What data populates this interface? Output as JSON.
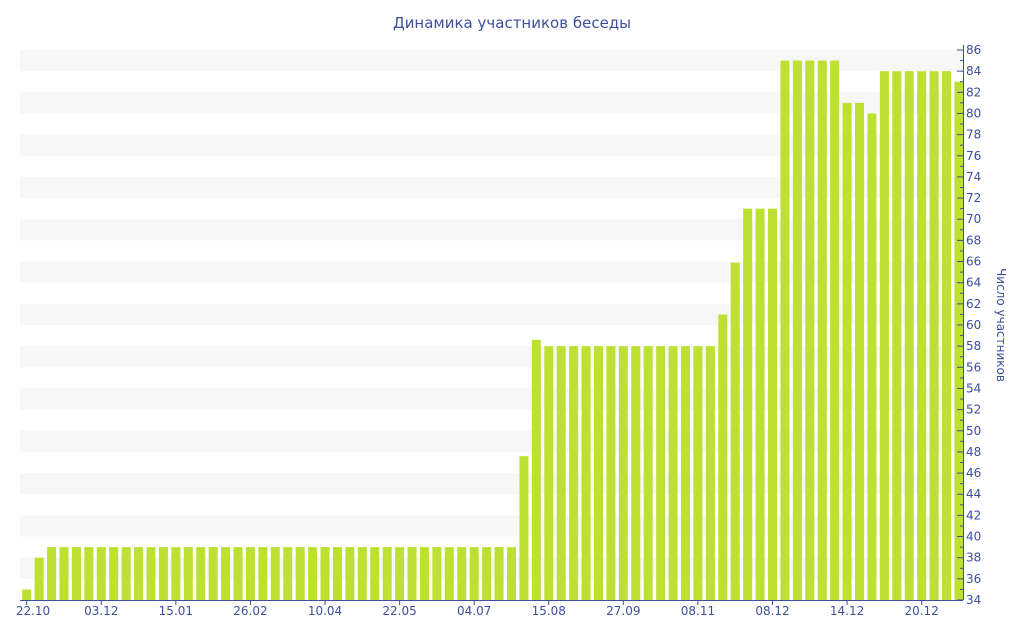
{
  "chart_data": {
    "type": "bar",
    "title": "Динамика участников беседы",
    "xlabel": "",
    "ylabel": "Число участников",
    "ylim": [
      34,
      86
    ],
    "ytick_step": 2,
    "y_axis_side": "right",
    "grid": "alternating horizontal bands",
    "x_tick_every": 6,
    "x_tick_labels": [
      "22.10",
      "03.12",
      "15.01",
      "26.02",
      "10.04",
      "22.05",
      "04.07",
      "15.08",
      "27.09",
      "08.11",
      "08.12",
      "14.12",
      "20.12"
    ],
    "values": [
      35,
      38,
      39,
      39,
      39,
      39,
      39,
      39,
      39,
      39,
      39,
      39,
      39,
      39,
      39,
      39,
      39,
      39,
      39,
      39,
      39,
      39,
      39,
      39,
      39,
      39,
      39,
      39,
      39,
      39,
      39,
      39,
      39,
      39,
      39,
      39,
      39,
      39,
      39,
      39,
      47.6,
      58.6,
      58,
      58,
      58,
      58,
      58,
      58,
      58,
      58,
      58,
      58,
      58,
      58,
      58,
      58,
      61,
      65.9,
      71,
      71,
      71,
      85,
      85,
      85,
      85,
      85,
      81,
      81,
      80,
      84,
      84,
      84,
      84,
      84,
      84,
      83
    ],
    "colors": {
      "bar": "#bde032",
      "axis": "#3e4f9e",
      "band": "#f7f7f7"
    }
  }
}
